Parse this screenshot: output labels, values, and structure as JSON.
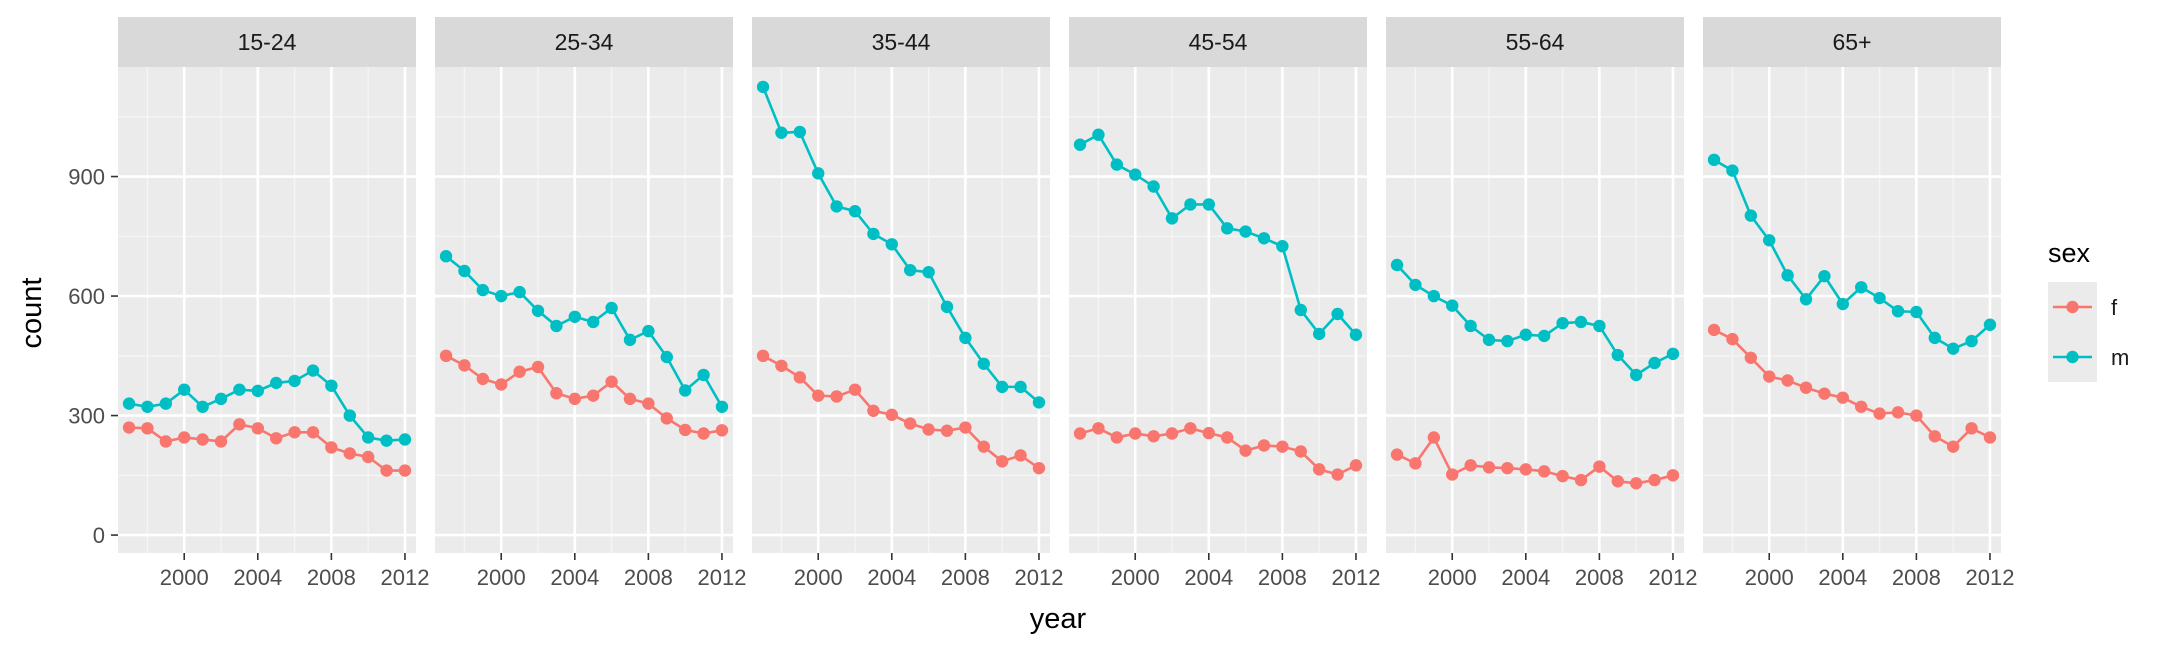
{
  "chart_data": {
    "type": "line",
    "facet_by": "age",
    "x_label": "year",
    "y_label": "count",
    "x_lim": [
      1996.4,
      2012.6
    ],
    "y_lim": [
      -45,
      1175
    ],
    "x_ticks": [
      2000,
      2004,
      2008,
      2012
    ],
    "x_tick_labels": [
      "2000",
      "2004",
      "2008",
      "2012"
    ],
    "y_ticks": [
      0,
      300,
      600,
      900
    ],
    "y_tick_labels": [
      "0",
      "300",
      "600",
      "900"
    ],
    "grid": true,
    "legend": {
      "title": "sex",
      "position": "right",
      "entries": [
        {
          "key": "f",
          "label": "f",
          "color": "#F8766D"
        },
        {
          "key": "m",
          "label": "m",
          "color": "#00BFC4"
        }
      ]
    },
    "years": [
      1997,
      1998,
      1999,
      2000,
      2001,
      2002,
      2003,
      2004,
      2005,
      2006,
      2007,
      2008,
      2009,
      2010,
      2011,
      2012
    ],
    "panels": [
      {
        "label": "15-24",
        "series": {
          "f": [
            270,
            268,
            235,
            245,
            240,
            235,
            278,
            268,
            243,
            258,
            258,
            220,
            205,
            196,
            162,
            162
          ],
          "m": [
            330,
            322,
            330,
            365,
            322,
            342,
            365,
            362,
            382,
            387,
            413,
            375,
            300,
            245,
            237,
            240
          ]
        }
      },
      {
        "label": "25-34",
        "series": {
          "f": [
            450,
            426,
            392,
            378,
            410,
            422,
            356,
            342,
            350,
            385,
            342,
            330,
            293,
            264,
            255,
            263
          ],
          "m": [
            700,
            663,
            615,
            600,
            610,
            563,
            525,
            548,
            535,
            570,
            490,
            512,
            447,
            363,
            402,
            322
          ]
        }
      },
      {
        "label": "35-44",
        "series": {
          "f": [
            450,
            425,
            396,
            350,
            348,
            365,
            312,
            302,
            280,
            265,
            262,
            270,
            222,
            185,
            200,
            168
          ],
          "m": [
            1125,
            1010,
            1012,
            908,
            825,
            813,
            756,
            730,
            665,
            660,
            573,
            495,
            430,
            372,
            372,
            333
          ]
        }
      },
      {
        "label": "45-54",
        "series": {
          "f": [
            255,
            268,
            245,
            255,
            248,
            255,
            268,
            256,
            245,
            212,
            225,
            222,
            210,
            165,
            152,
            175
          ],
          "m": [
            980,
            1005,
            930,
            905,
            875,
            795,
            830,
            830,
            770,
            762,
            745,
            725,
            565,
            505,
            555,
            503
          ]
        }
      },
      {
        "label": "55-64",
        "series": {
          "f": [
            202,
            180,
            245,
            152,
            175,
            170,
            168,
            165,
            160,
            148,
            138,
            172,
            135,
            130,
            138,
            150
          ],
          "m": [
            678,
            628,
            600,
            576,
            525,
            490,
            487,
            503,
            500,
            532,
            535,
            525,
            452,
            402,
            432,
            455
          ]
        }
      },
      {
        "label": "65+",
        "series": {
          "f": [
            515,
            492,
            445,
            398,
            388,
            370,
            355,
            345,
            322,
            305,
            308,
            300,
            248,
            222,
            268,
            245
          ],
          "m": [
            942,
            915,
            802,
            740,
            652,
            592,
            650,
            580,
            622,
            595,
            562,
            560,
            495,
            468,
            487,
            528
          ]
        }
      }
    ]
  }
}
